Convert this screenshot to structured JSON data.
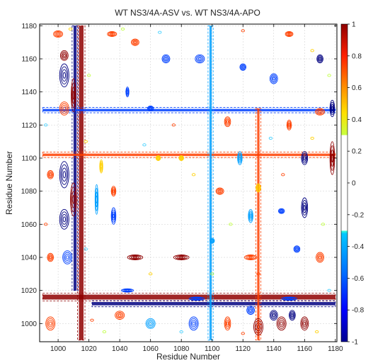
{
  "chart_data": {
    "type": "heatmap",
    "subtype": "contour",
    "title": "WT NS3/4A-ASV vs. WT NS3/4A-APO",
    "xlabel": "Residue Number",
    "ylabel": "Residue Number",
    "xlim": [
      988,
      1181
    ],
    "ylim": [
      989,
      1181
    ],
    "x_ticks": [
      1000,
      1020,
      1040,
      1060,
      1080,
      1100,
      1120,
      1140,
      1160,
      1180
    ],
    "y_ticks": [
      1000,
      1020,
      1040,
      1060,
      1080,
      1100,
      1120,
      1140,
      1160,
      1180
    ],
    "grid": true,
    "colorbar": {
      "range": [
        -1,
        1
      ],
      "ticks": [
        1,
        0.8,
        0.6,
        0.4,
        0.2,
        0,
        -0.2,
        -0.4,
        -0.6,
        -0.8,
        -1
      ],
      "colors": [
        "#00008f",
        "#0000ff",
        "#0060ff",
        "#00bfff",
        "#40ffbf",
        "#ffffff",
        "#ffffff",
        "#bfff40",
        "#ffbf00",
        "#ff4000",
        "#8f0000"
      ],
      "blank_range": [
        -0.3,
        0.3
      ]
    },
    "colors": {
      "positive_strong": "#8f0000",
      "positive_mid": "#ff4000",
      "positive_weak": "#ffd000",
      "positive_low": "#bfff40",
      "negative_strong": "#000080",
      "negative_mid": "#0040ff",
      "negative_weak": "#00a0ff",
      "negative_low": "#40d0ff"
    },
    "bands": [
      {
        "orient": "v",
        "center": 1015,
        "width": 3,
        "from": 990,
        "to": 1180,
        "value": 0.95
      },
      {
        "orient": "v",
        "center": 1011,
        "width": 2,
        "from": 1020,
        "to": 1180,
        "value": -0.9
      },
      {
        "orient": "h",
        "center": 1016,
        "width": 3,
        "from": 990,
        "to": 1180,
        "value": 0.95
      },
      {
        "orient": "h",
        "center": 1012,
        "width": 2,
        "from": 1022,
        "to": 1180,
        "value": -0.9
      },
      {
        "orient": "h",
        "center": 1129,
        "width": 1.5,
        "from": 990,
        "to": 1180,
        "value": -0.7
      },
      {
        "orient": "h",
        "center": 1102,
        "width": 1.5,
        "from": 990,
        "to": 1180,
        "value": 0.8
      },
      {
        "orient": "v",
        "center": 1099,
        "width": 1.5,
        "from": 990,
        "to": 1180,
        "value": -0.6
      },
      {
        "orient": "v",
        "center": 1130,
        "width": 1.5,
        "from": 990,
        "to": 1130,
        "value": 0.7
      }
    ],
    "blobs": [
      {
        "x": 1004,
        "y": 1150,
        "w": 6,
        "h": 14,
        "value": -0.9
      },
      {
        "x": 1004,
        "y": 1130,
        "w": 6,
        "h": 8,
        "value": 0.7
      },
      {
        "x": 1004,
        "y": 1090,
        "w": 6,
        "h": 16,
        "value": -0.85
      },
      {
        "x": 1004,
        "y": 1063,
        "w": 6,
        "h": 12,
        "value": -0.85
      },
      {
        "x": 1006,
        "y": 1040,
        "w": 6,
        "h": 8,
        "value": -0.8
      },
      {
        "x": 1004,
        "y": 1162,
        "w": 5,
        "h": 6,
        "value": 0.9
      },
      {
        "x": 1010,
        "y": 1075,
        "w": 4,
        "h": 20,
        "value": 0.9
      },
      {
        "x": 1010,
        "y": 1138,
        "w": 3,
        "h": 20,
        "value": 0.85
      },
      {
        "x": 995,
        "y": 1000,
        "w": 6,
        "h": 8,
        "value": 0.8
      },
      {
        "x": 995,
        "y": 1040,
        "w": 4,
        "h": 5,
        "value": 0.7
      },
      {
        "x": 995,
        "y": 1090,
        "w": 4,
        "h": 5,
        "value": 0.7
      },
      {
        "x": 1130,
        "y": 998,
        "w": 6,
        "h": 10,
        "value": 0.9
      },
      {
        "x": 1145,
        "y": 1000,
        "w": 6,
        "h": 8,
        "value": 0.9
      },
      {
        "x": 1160,
        "y": 1000,
        "w": 5,
        "h": 8,
        "value": 0.85
      },
      {
        "x": 1110,
        "y": 1000,
        "w": 4,
        "h": 8,
        "value": 0.7
      },
      {
        "x": 1088,
        "y": 1000,
        "w": 6,
        "h": 8,
        "value": -0.8
      },
      {
        "x": 1060,
        "y": 1000,
        "w": 6,
        "h": 6,
        "value": -0.6
      },
      {
        "x": 1040,
        "y": 1005,
        "w": 6,
        "h": 5,
        "value": 0.7
      },
      {
        "x": 1140,
        "y": 1005,
        "w": 5,
        "h": 6,
        "value": -0.85
      },
      {
        "x": 1152,
        "y": 1005,
        "w": 4,
        "h": 6,
        "value": -0.85
      },
      {
        "x": 1125,
        "y": 1008,
        "w": 5,
        "h": 5,
        "value": -0.7
      },
      {
        "x": 1050,
        "y": 1040,
        "w": 10,
        "h": 3,
        "value": 0.85
      },
      {
        "x": 1080,
        "y": 1040,
        "w": 10,
        "h": 3,
        "value": 0.85
      },
      {
        "x": 1125,
        "y": 1040,
        "w": 8,
        "h": 3,
        "value": 0.8
      },
      {
        "x": 1160,
        "y": 1070,
        "w": 4,
        "h": 12,
        "value": -0.9
      },
      {
        "x": 1160,
        "y": 1100,
        "w": 4,
        "h": 8,
        "value": -0.85
      },
      {
        "x": 1150,
        "y": 1120,
        "w": 3,
        "h": 6,
        "value": 0.8
      },
      {
        "x": 1170,
        "y": 1128,
        "w": 6,
        "h": 4,
        "value": 0.8
      },
      {
        "x": 1178,
        "y": 1100,
        "w": 3,
        "h": 20,
        "value": 0.9
      },
      {
        "x": 1178,
        "y": 1130,
        "w": 3,
        "h": 10,
        "value": -0.9
      },
      {
        "x": 1170,
        "y": 1160,
        "w": 4,
        "h": 5,
        "value": -0.85
      },
      {
        "x": 1070,
        "y": 1160,
        "w": 5,
        "h": 5,
        "value": -0.8
      },
      {
        "x": 1092,
        "y": 1160,
        "w": 6,
        "h": 5,
        "value": -0.75
      },
      {
        "x": 1050,
        "y": 1170,
        "w": 5,
        "h": 4,
        "value": 0.7
      },
      {
        "x": 1035,
        "y": 1175,
        "w": 6,
        "h": 3,
        "value": 0.75
      },
      {
        "x": 1150,
        "y": 1175,
        "w": 5,
        "h": 3,
        "value": 0.8
      },
      {
        "x": 1120,
        "y": 1155,
        "w": 4,
        "h": 4,
        "value": -0.7
      },
      {
        "x": 1140,
        "y": 1148,
        "w": 5,
        "h": 6,
        "value": -0.8
      },
      {
        "x": 1036,
        "y": 1065,
        "w": 3,
        "h": 10,
        "value": -0.8
      },
      {
        "x": 1036,
        "y": 1080,
        "w": 3,
        "h": 6,
        "value": 0.7
      },
      {
        "x": 1045,
        "y": 1140,
        "w": 2,
        "h": 6,
        "value": -0.8
      },
      {
        "x": 1110,
        "y": 1122,
        "w": 4,
        "h": 6,
        "value": 0.75
      },
      {
        "x": 1118,
        "y": 1100,
        "w": 3,
        "h": 8,
        "value": -0.6
      },
      {
        "x": 1105,
        "y": 1080,
        "w": 5,
        "h": 4,
        "value": 0.7
      },
      {
        "x": 1125,
        "y": 1065,
        "w": 3,
        "h": 8,
        "value": -0.6
      },
      {
        "x": 1145,
        "y": 1068,
        "w": 4,
        "h": 3,
        "value": -0.7
      },
      {
        "x": 1170,
        "y": 1040,
        "w": 5,
        "h": 6,
        "value": 0.75
      },
      {
        "x": 1155,
        "y": 1045,
        "w": 4,
        "h": 4,
        "value": -0.7
      },
      {
        "x": 1065,
        "y": 1100,
        "w": 3,
        "h": 3,
        "value": 0.6
      },
      {
        "x": 1080,
        "y": 1100,
        "w": 3,
        "h": 3,
        "value": 0.6
      },
      {
        "x": 1000,
        "y": 1175,
        "w": 6,
        "h": 4,
        "value": 0.7
      },
      {
        "x": 1025,
        "y": 1075,
        "w": 2,
        "h": 18,
        "value": -0.6
      },
      {
        "x": 1028,
        "y": 1095,
        "w": 2,
        "h": 8,
        "value": 0.6
      },
      {
        "x": 1060,
        "y": 1130,
        "w": 4,
        "h": 3,
        "value": -0.7
      },
      {
        "x": 1100,
        "y": 1050,
        "w": 3,
        "h": 3,
        "value": -0.5
      },
      {
        "x": 1130,
        "y": 1082,
        "w": 3,
        "h": 5,
        "value": 0.6
      },
      {
        "x": 1045,
        "y": 1020,
        "w": 8,
        "h": 2,
        "value": -0.7
      },
      {
        "x": 1090,
        "y": 1015,
        "w": 10,
        "h": 2,
        "value": -0.8
      },
      {
        "x": 1150,
        "y": 1015,
        "w": 10,
        "h": 2,
        "value": -0.8
      }
    ],
    "speckles": [
      {
        "x": 1008,
        "y": 1178
      },
      {
        "x": 1042,
        "y": 1178
      },
      {
        "x": 1066,
        "y": 1176
      },
      {
        "x": 1120,
        "y": 1177
      },
      {
        "x": 1165,
        "y": 1165
      },
      {
        "x": 1176,
        "y": 1150
      },
      {
        "x": 992,
        "y": 1120
      },
      {
        "x": 992,
        "y": 1060
      },
      {
        "x": 1018,
        "y": 1110
      },
      {
        "x": 1020,
        "y": 1150
      },
      {
        "x": 1056,
        "y": 1108
      },
      {
        "x": 1075,
        "y": 1120
      },
      {
        "x": 1088,
        "y": 1090
      },
      {
        "x": 1112,
        "y": 1060
      },
      {
        "x": 1138,
        "y": 1112
      },
      {
        "x": 1146,
        "y": 1090
      },
      {
        "x": 1165,
        "y": 1112
      },
      {
        "x": 1172,
        "y": 1060
      },
      {
        "x": 1176,
        "y": 1020
      },
      {
        "x": 1130,
        "y": 1030
      },
      {
        "x": 1060,
        "y": 1030
      },
      {
        "x": 1100,
        "y": 1030
      },
      {
        "x": 1080,
        "y": 995
      },
      {
        "x": 1120,
        "y": 994
      },
      {
        "x": 1168,
        "y": 995
      },
      {
        "x": 1030,
        "y": 995
      },
      {
        "x": 1018,
        "y": 1045
      },
      {
        "x": 1022,
        "y": 1002
      }
    ]
  }
}
